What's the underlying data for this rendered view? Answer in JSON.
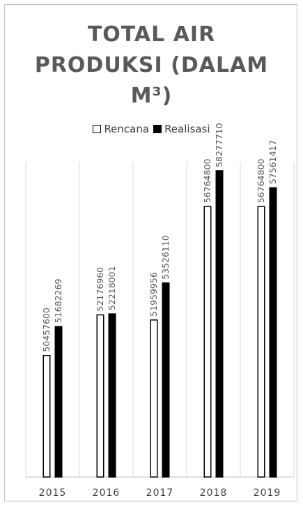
{
  "chart_data": {
    "type": "bar",
    "title_lines": [
      "TOTAL AIR",
      "PRODUKSI (DALAM",
      "M³)"
    ],
    "categories": [
      "2015",
      "2016",
      "2017",
      "2018",
      "2019"
    ],
    "series": [
      {
        "name": "Rencana",
        "values": [
          50457600,
          52176960,
          51959956,
          56764800,
          56764800
        ],
        "fill": "#ffffff",
        "stroke": "#000000"
      },
      {
        "name": "Realisasi",
        "values": [
          51682269,
          52218001,
          53526110,
          58277710,
          57561417
        ],
        "fill": "#000000",
        "stroke": "#000000"
      }
    ],
    "legend_position": "top",
    "grid": "vertical",
    "data_labels": true
  }
}
